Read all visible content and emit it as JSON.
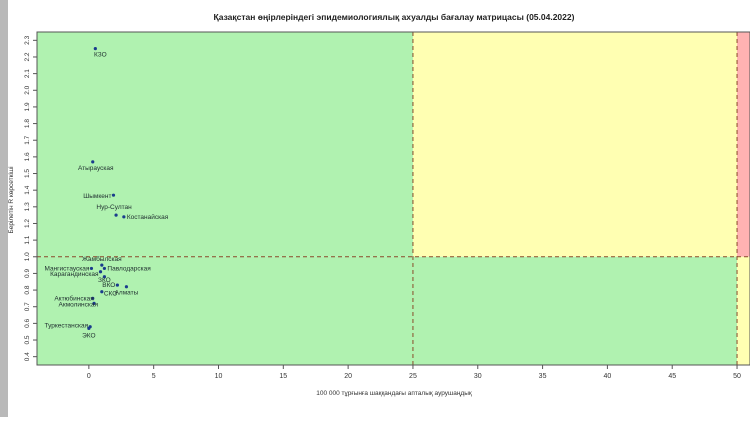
{
  "chart_data": {
    "type": "scatter",
    "title": "Қазақстан өңірлеріндегі эпидемиологиялық ахуалды бағалау матрицасы  (05.04.2022)",
    "xlabel": "100 000 тұрғынға шаққандағы апталық аурушаңдық",
    "ylabel": "Берілетін R көрсеткіші",
    "xlim": [
      -4,
      51
    ],
    "ylim": [
      0.35,
      2.35
    ],
    "x_ticks": [
      "0",
      "5",
      "10",
      "15",
      "20",
      "25",
      "30",
      "35",
      "40",
      "45",
      "50"
    ],
    "y_ticks": [
      "0.4",
      "0.5",
      "0.6",
      "0.7",
      "0.8",
      "0.9",
      "1.0",
      "1.1",
      "1.2",
      "1.3",
      "1.4",
      "1.5",
      "1.6",
      "1.7",
      "1.8",
      "1.9",
      "2.0",
      "2.1",
      "2.2",
      "2.3"
    ],
    "zones": [
      {
        "x": [
          -4,
          25
        ],
        "y": [
          1.0,
          2.35
        ],
        "color": "#b0f2b0"
      },
      {
        "x": [
          25,
          50
        ],
        "y": [
          1.0,
          2.35
        ],
        "color": "#ffffb2"
      },
      {
        "x": [
          50,
          51
        ],
        "y": [
          1.0,
          2.35
        ],
        "color": "#ffb2b2"
      },
      {
        "x": [
          -4,
          50
        ],
        "y": [
          0.35,
          1.0
        ],
        "color": "#b0f2b0"
      },
      {
        "x": [
          50,
          51
        ],
        "y": [
          0.35,
          1.0
        ],
        "color": "#ffffb2"
      }
    ],
    "thresholds": {
      "x": [
        25,
        50
      ],
      "y": 1.0
    },
    "point_color": "#1a3c8c",
    "points": [
      {
        "label": "КЗО",
        "x": 0.5,
        "y": 2.25
      },
      {
        "label": "Атырауская",
        "x": 0.3,
        "y": 1.57
      },
      {
        "label": "Шымкент",
        "x": 1.9,
        "y": 1.37
      },
      {
        "label": "Нур-Султан",
        "x": 2.1,
        "y": 1.25
      },
      {
        "label": "Костанайская",
        "x": 2.7,
        "y": 1.24
      },
      {
        "label": "Жамбылская",
        "x": 1.0,
        "y": 0.95
      },
      {
        "label": "Мангистауская",
        "x": 0.2,
        "y": 0.93
      },
      {
        "label": "Павлодарская",
        "x": 1.2,
        "y": 0.93
      },
      {
        "label": "Карагандинская",
        "x": 0.9,
        "y": 0.91
      },
      {
        "label": "ЗКО",
        "x": 1.2,
        "y": 0.88
      },
      {
        "label": "ВКО",
        "x": 2.2,
        "y": 0.83
      },
      {
        "label": "Алматы",
        "x": 2.9,
        "y": 0.82
      },
      {
        "label": "СКО",
        "x": 1.0,
        "y": 0.79
      },
      {
        "label": "Актюбинская",
        "x": 0.3,
        "y": 0.75
      },
      {
        "label": "Акмолинская",
        "x": 0.4,
        "y": 0.72
      },
      {
        "label": "Туркестанская",
        "x": 0.1,
        "y": 0.58
      },
      {
        "label": "ЭКО",
        "x": 0.0,
        "y": 0.57
      }
    ]
  }
}
